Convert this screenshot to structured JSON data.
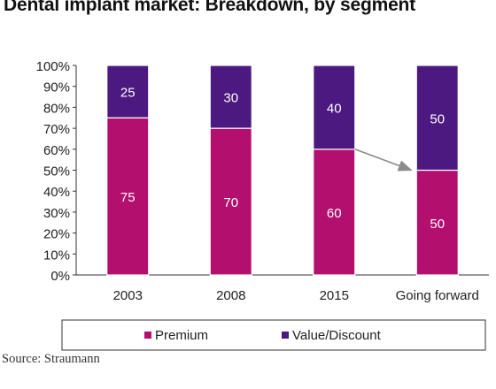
{
  "chart_data": {
    "type": "bar",
    "stacked": true,
    "title": "Dental implant market: Breakdown, by segment",
    "categories": [
      "2003",
      "2008",
      "2015",
      "Going forward"
    ],
    "series": [
      {
        "name": "Premium",
        "values": [
          75,
          70,
          60,
          50
        ],
        "color": "#b30f6e"
      },
      {
        "name": "Value/Discount",
        "values": [
          25,
          30,
          40,
          50
        ],
        "color": "#4b1980"
      }
    ],
    "ylim": [
      0,
      100
    ],
    "y_ticks": [
      "0%",
      "10%",
      "20%",
      "30%",
      "40%",
      "50%",
      "60%",
      "70%",
      "80%",
      "90%",
      "100%"
    ],
    "xlabel": "",
    "ylabel": "",
    "grid": false,
    "legend_position": "bottom",
    "annotation": "arrow from 2015 to Going forward at segment boundary",
    "source": "Source: Straumann"
  }
}
